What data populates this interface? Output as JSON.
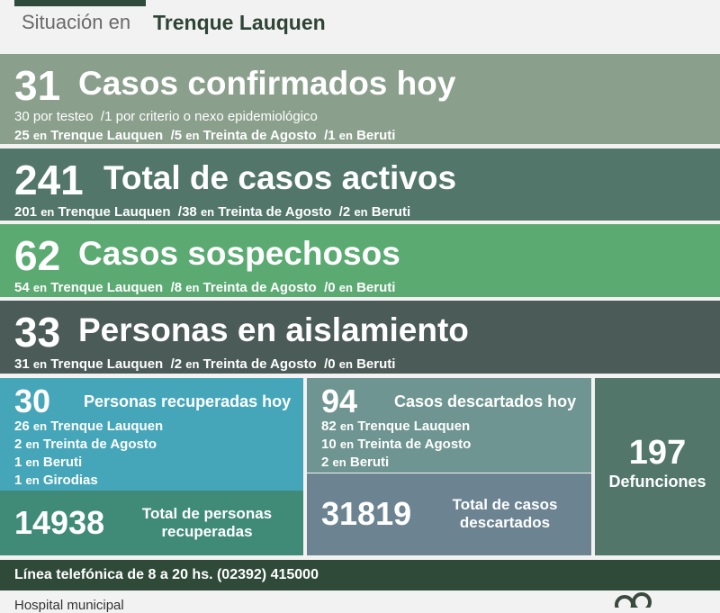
{
  "header": {
    "prefix": "Situación en",
    "city": "Trenque Lauquen"
  },
  "confirmed": {
    "number": "31",
    "title": "Casos confirmados hoy",
    "line1": {
      "a_num": "30",
      "a_text": "por testeo",
      "b_num": "/1",
      "b_text": "por criterio o nexo epidemiológico"
    },
    "line2": {
      "n1": "25",
      "p1": "Trenque Lauquen",
      "n2": "/5",
      "p2": "Treinta de Agosto",
      "n3": "/1",
      "p3": "Beruti"
    }
  },
  "active": {
    "number": "241",
    "title": "Total de casos activos",
    "line": {
      "n1": "201",
      "p1": "Trenque Lauquen",
      "n2": "/38",
      "p2": "Treinta de Agosto",
      "n3": "/2",
      "p3": "Beruti"
    }
  },
  "suspected": {
    "number": "62",
    "title": "Casos sospechosos",
    "line": {
      "n1": "54",
      "p1": "Trenque Lauquen",
      "n2": "/8",
      "p2": "Treinta de Agosto",
      "n3": "/0",
      "p3": "Beruti"
    }
  },
  "isolation": {
    "number": "33",
    "title": "Personas en aislamiento",
    "line": {
      "n1": "31",
      "p1": "Trenque Lauquen",
      "n2": "/2",
      "p2": "Treinta de Agosto",
      "n3": "/0",
      "p3": "Beruti"
    }
  },
  "en": "en",
  "recovered": {
    "number": "30",
    "title": "Personas recuperadas hoy",
    "items": [
      {
        "n": "26",
        "place": "Trenque Lauquen"
      },
      {
        "n": "2",
        "place": "Treinta de Agosto"
      },
      {
        "n": "1",
        "place": "Beruti"
      },
      {
        "n": "1",
        "place": "Girodias"
      }
    ],
    "total_number": "14938",
    "total_line1": "Total de personas",
    "total_line2": "recuperadas"
  },
  "discarded": {
    "number": "94",
    "title": "Casos descartados hoy",
    "items": [
      {
        "n": "82",
        "place": "Trenque Lauquen"
      },
      {
        "n": "10",
        "place": "Treinta de Agosto"
      },
      {
        "n": "2",
        "place": "Beruti"
      }
    ],
    "total_number": "31819",
    "total_line1": "Total de casos",
    "total_line2": "descartados"
  },
  "deaths": {
    "number": "197",
    "label": "Defunciones"
  },
  "footer": {
    "phone_line": "Línea telefónica de 8 a 20 hs. (02392) 415000"
  },
  "bottom": {
    "hospital": "Hospital municipal"
  },
  "colors": {
    "confirmed_bg": "#8a9f8c",
    "active_bg": "#52766a",
    "suspected_bg": "#5aaa72",
    "isolation_bg": "#4b5b58",
    "recovered_bg": "#45a6ba",
    "recovered_total_bg": "#3f8b78",
    "discarded_bg": "#6e9591",
    "discarded_total_bg": "#6c8491",
    "deaths_bg": "#52776a"
  }
}
